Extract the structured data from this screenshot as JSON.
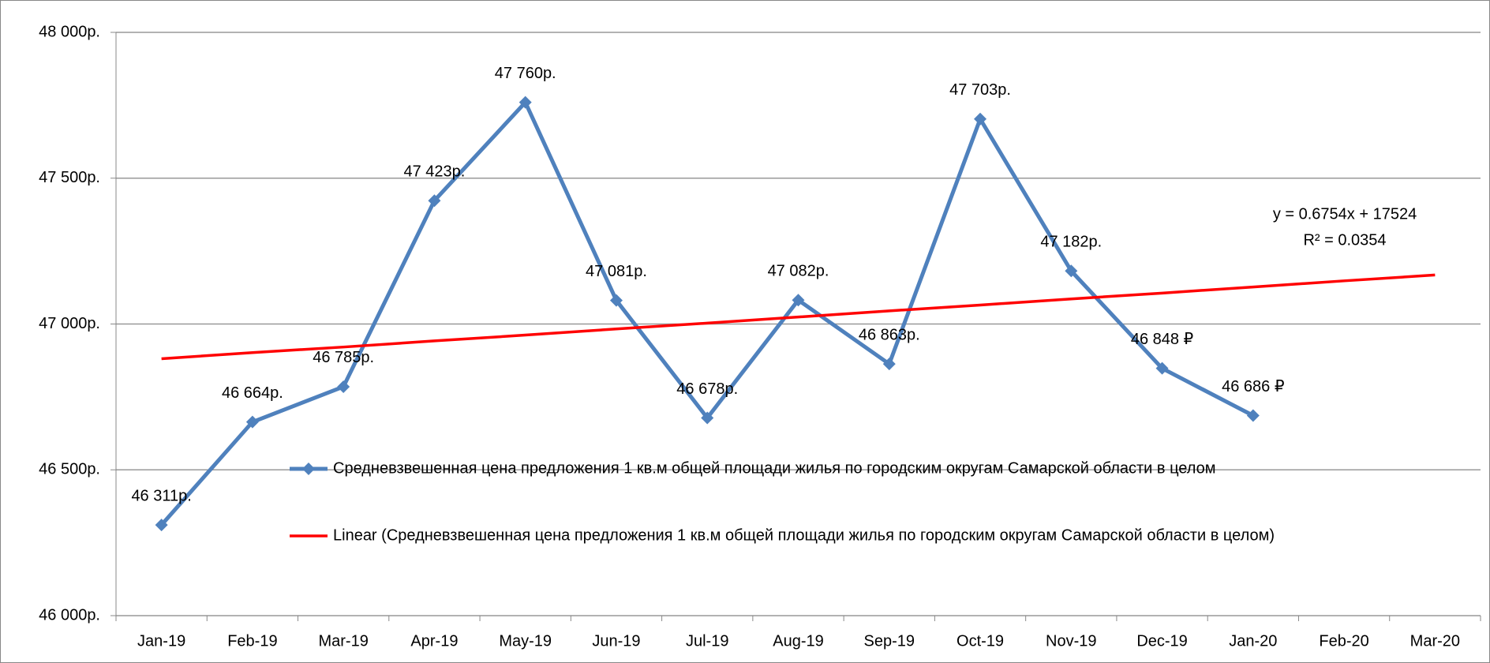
{
  "chart_data": {
    "type": "line",
    "categories": [
      "Jan-19",
      "Feb-19",
      "Mar-19",
      "Apr-19",
      "May-19",
      "Jun-19",
      "Jul-19",
      "Aug-19",
      "Sep-19",
      "Oct-19",
      "Nov-19",
      "Dec-19",
      "Jan-20",
      "Feb-20",
      "Mar-20"
    ],
    "series": [
      {
        "name": "Средневзвешенная цена предложения 1 кв.м общей площади жилья по городским округам Самарской области в целом",
        "color": "#4f81bd",
        "marker": "diamond",
        "values": [
          46311,
          46664,
          46785,
          47423,
          47760,
          47081,
          46678,
          47082,
          46863,
          47703,
          47182,
          46848,
          46686,
          null,
          null
        ],
        "value_labels": [
          "46 311р.",
          "46 664р.",
          "46 785р.",
          "47 423р.",
          "47 760р.",
          "47 081р.",
          "46 678р.",
          "47 082р.",
          "46 863р.",
          "47 703р.",
          "47 182р.",
          "46 848 ₽",
          "46 686 ₽",
          null,
          null
        ]
      },
      {
        "name": "Linear (Средневзвешенная цена предложения 1 кв.м общей площади жилья по городским округам Самарской области в целом)",
        "color": "#ff0000",
        "marker": "none",
        "values": [
          46881,
          46902,
          46921,
          46942,
          46962,
          46983,
          47003,
          47024,
          47045,
          47065,
          47086,
          47106,
          47127,
          47148,
          47168
        ]
      }
    ],
    "annotations": [
      "y = 0.6754x + 17524",
      "R² = 0.0354"
    ],
    "ylim": [
      46000,
      48000
    ],
    "yticks": [
      {
        "value": 46000,
        "label": "46 000р."
      },
      {
        "value": 46500,
        "label": "46 500р."
      },
      {
        "value": 47000,
        "label": "47 000р."
      },
      {
        "value": 47500,
        "label": "47 500р."
      },
      {
        "value": 48000,
        "label": "48 000р."
      }
    ],
    "grid": true,
    "legend": "inside"
  }
}
